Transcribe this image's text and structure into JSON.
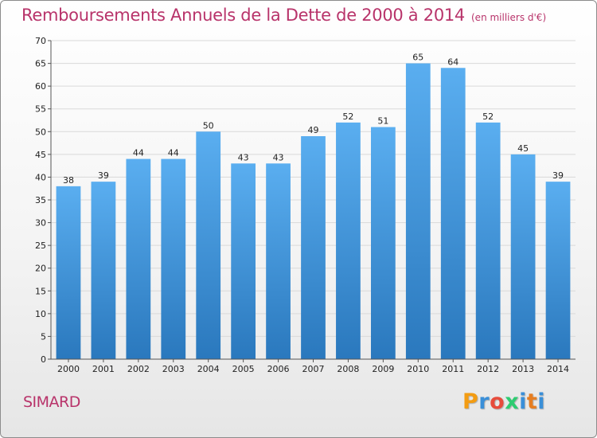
{
  "header": {
    "title": "Remboursements Annuels de la Dette de 2000 à 2014",
    "subtitle": "(en milliers d'€)"
  },
  "footer": {
    "commune": "SIMARD",
    "logo": [
      {
        "char": "P",
        "color": "#f39c12"
      },
      {
        "char": "r",
        "color": "#3a8fd8"
      },
      {
        "char": "o",
        "color": "#e74c3c"
      },
      {
        "char": "x",
        "color": "#2ecc71"
      },
      {
        "char": "i",
        "color": "#3a8fd8"
      },
      {
        "char": "t",
        "color": "#e67e22"
      },
      {
        "char": "i",
        "color": "#3a8fd8"
      }
    ]
  },
  "colors": {
    "bar_top": "#5aaef0",
    "bar_bottom": "#2a78bd",
    "grid": "#d9d9d9",
    "axis": "#555555",
    "title": "#b8336a"
  },
  "chart_data": {
    "type": "bar",
    "title": "Remboursements Annuels de la Dette de 2000 à 2014",
    "subtitle": "(en milliers d'€)",
    "categories": [
      "2000",
      "2001",
      "2002",
      "2003",
      "2004",
      "2005",
      "2006",
      "2007",
      "2008",
      "2009",
      "2010",
      "2011",
      "2012",
      "2013",
      "2014"
    ],
    "values": [
      38,
      39,
      44,
      44,
      50,
      43,
      43,
      49,
      52,
      51,
      65,
      64,
      52,
      45,
      39
    ],
    "xlabel": "",
    "ylabel": "",
    "ylim": [
      0,
      70
    ],
    "yticks": [
      0,
      5,
      10,
      15,
      20,
      25,
      30,
      35,
      40,
      45,
      50,
      55,
      60,
      65,
      70
    ],
    "grid": true,
    "legend": "none"
  }
}
